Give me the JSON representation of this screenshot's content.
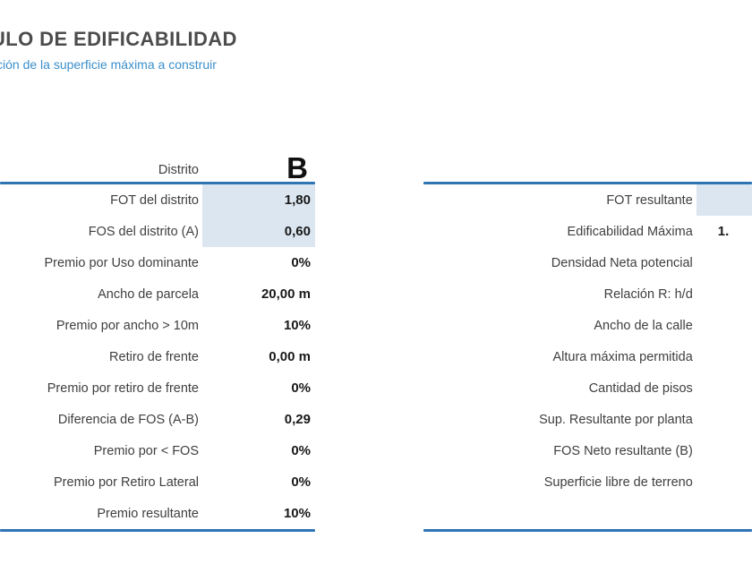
{
  "header": {
    "title": "ULO DE EDIFICABILIDAD",
    "subtitle": "ción de la superficie máxima a construir"
  },
  "left_table": {
    "header_label": "Distrito",
    "header_value": "B",
    "rows": [
      {
        "label": "FOT del distrito",
        "value": "1,80",
        "shaded": true
      },
      {
        "label": "FOS del distrito (A)",
        "value": "0,60",
        "shaded": true
      },
      {
        "label": "Premio por Uso dominante",
        "value": "0%",
        "shaded": false
      },
      {
        "label": "Ancho de parcela",
        "value": "20,00 m",
        "shaded": false
      },
      {
        "label": "Premio por ancho > 10m",
        "value": "10%",
        "shaded": false
      },
      {
        "label": "Retiro de frente",
        "value": "0,00 m",
        "shaded": false
      },
      {
        "label": "Premio por retiro de frente",
        "value": "0%",
        "shaded": false
      },
      {
        "label": "Diferencia de FOS (A-B)",
        "value": "0,29",
        "shaded": false
      },
      {
        "label": "Premio por < FOS",
        "value": "0%",
        "shaded": false
      },
      {
        "label": "Premio por Retiro Lateral",
        "value": "0%",
        "shaded": false
      },
      {
        "label": "Premio resultante",
        "value": "10%",
        "shaded": false
      }
    ]
  },
  "right_table": {
    "rows": [
      {
        "label": "FOT resultante",
        "value": "",
        "shaded": true
      },
      {
        "label": "Edificabilidad Máxima",
        "value": "1.",
        "shaded": false
      },
      {
        "label": "Densidad Neta potencial",
        "value": "",
        "shaded": false
      },
      {
        "label": "Relación R: h/d",
        "value": "",
        "shaded": false
      },
      {
        "label": "Ancho de la calle",
        "value": "",
        "shaded": false
      },
      {
        "label": "Altura máxima permitida",
        "value": "",
        "shaded": false
      },
      {
        "label": "Cantidad de pisos",
        "value": "",
        "shaded": false
      },
      {
        "label": "Sup. Resultante por planta",
        "value": "",
        "shaded": false
      },
      {
        "label": "FOS Neto resultante (B)",
        "value": "",
        "shaded": false
      },
      {
        "label": "Superficie libre de terreno",
        "value": "",
        "shaded": false
      }
    ]
  },
  "colors": {
    "accent_line": "#2e75b6",
    "shaded_cell": "#dce6f1",
    "title_text": "#4c4c4c",
    "subtitle_text": "#3b8ecb",
    "label_text": "#3f3f3f",
    "value_text": "#191919"
  }
}
